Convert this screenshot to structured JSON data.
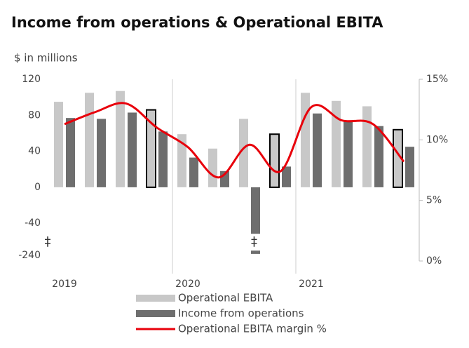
{
  "chart_data": {
    "type": "bar",
    "title": "Income from operations & Operational EBITA",
    "y_label": "$ in millions",
    "categories": [
      "2019",
      null,
      null,
      null,
      "2020",
      null,
      null,
      null,
      "2021",
      null,
      null,
      null
    ],
    "series": [
      {
        "name": "Operational EBITA",
        "color": "#c8c8c8",
        "values": [
          95,
          105,
          107,
          86,
          59,
          43,
          76,
          59,
          105,
          96,
          90,
          64
        ],
        "outline_indices": [
          3,
          7,
          11
        ]
      },
      {
        "name": "Income from operations",
        "color": "#6e6e6e",
        "values": [
          77,
          76,
          83,
          62,
          33,
          18,
          -230,
          23,
          82,
          74,
          68,
          45
        ]
      },
      {
        "name": "Operational EBITA margin %",
        "color": "#e8000b",
        "type": "line",
        "axis": "y2",
        "values": [
          11.3,
          12.3,
          13.0,
          11.0,
          9.4,
          6.9,
          9.6,
          7.4,
          12.7,
          11.6,
          11.3,
          8.2
        ]
      }
    ],
    "ylim": [
      -240,
      120
    ],
    "yticks": [
      120,
      80,
      40,
      0,
      -40,
      -240
    ],
    "broken_axis": true,
    "break_mark": "‡",
    "y2lim": [
      0,
      15
    ],
    "y2ticks": [
      {
        "value": 15,
        "label": "15%"
      },
      {
        "value": 10,
        "label": "10%"
      },
      {
        "value": 5,
        "label": "5%"
      },
      {
        "value": 0,
        "label": "0%"
      }
    ],
    "legend": "bottom"
  }
}
